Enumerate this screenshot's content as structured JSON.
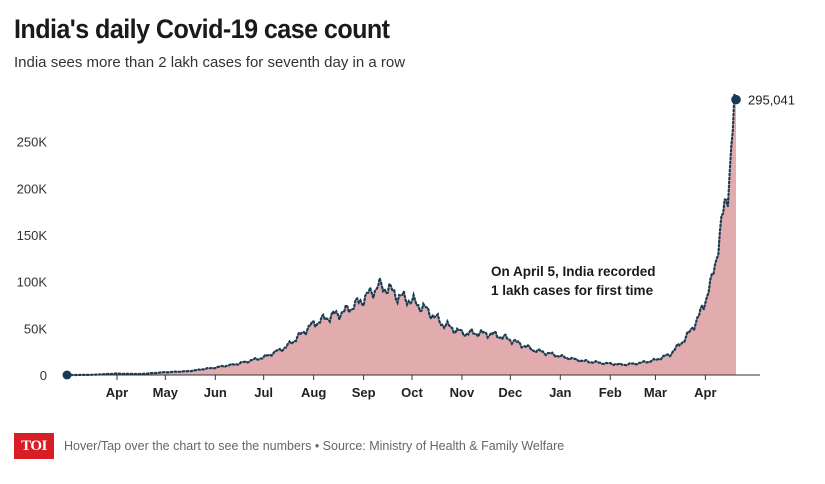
{
  "header": {
    "title": "India's daily Covid-19 case count",
    "subtitle": "India sees more than 2 lakh cases for seventh day in a row"
  },
  "footer": {
    "logo_text": "TOI",
    "note": "Hover/Tap over the chart to see the numbers • Source: Ministry of Health & Family Welfare"
  },
  "colors": {
    "area_fill": "#e2acaf",
    "line": "#1c3d52",
    "marker": "#163a57",
    "axis": "#333333",
    "logo": "#d81e24"
  },
  "chart_data": {
    "type": "area",
    "title": "India's daily Covid-19 case count",
    "subtitle": "India sees more than 2 lakh cases for seventh day in a row",
    "x_tick_labels": [
      "Apr",
      "May",
      "Jun",
      "Jul",
      "Aug",
      "Sep",
      "Oct",
      "Nov",
      "Dec",
      "Jan",
      "Feb",
      "Mar",
      "Apr"
    ],
    "y_tick_labels": [
      "0",
      "50K",
      "100K",
      "150K",
      "200K",
      "250K"
    ],
    "ylim": [
      0,
      300000
    ],
    "grid": false,
    "series": [
      {
        "x": [
          "2020-03-01",
          "2020-03-15",
          "2020-04-01",
          "2020-04-15",
          "2020-05-01",
          "2020-05-15",
          "2020-06-01",
          "2020-06-15",
          "2020-07-01",
          "2020-07-15",
          "2020-07-25",
          "2020-08-01",
          "2020-08-10",
          "2020-08-20",
          "2020-08-31",
          "2020-09-10",
          "2020-09-16",
          "2020-09-22",
          "2020-09-30",
          "2020-10-10",
          "2020-10-20",
          "2020-11-01",
          "2020-11-10",
          "2020-11-20",
          "2020-12-01",
          "2020-12-15",
          "2021-01-01",
          "2021-01-15",
          "2021-02-01",
          "2021-02-10",
          "2021-02-20",
          "2021-03-01",
          "2021-03-10",
          "2021-03-20",
          "2021-03-28",
          "2021-04-05",
          "2021-04-10",
          "2021-04-15",
          "2021-04-18",
          "2021-04-20"
        ],
        "y": [
          0,
          100,
          1500,
          1000,
          3000,
          4000,
          8000,
          12000,
          19000,
          30000,
          45000,
          55000,
          62000,
          68000,
          80000,
          95000,
          93000,
          85000,
          80000,
          70000,
          55000,
          45000,
          45000,
          44000,
          38000,
          27000,
          20000,
          15000,
          12000,
          11000,
          13000,
          16000,
          22000,
          40000,
          62000,
          100000,
          150000,
          200000,
          260000,
          295041
        ]
      }
    ],
    "annotations": [
      {
        "text_line1": "On April 5, India recorded",
        "text_line2": "1 lakh cases for first time",
        "x": "2020-12-01",
        "y": 103000
      },
      {
        "label": "295,041",
        "x": "2021-04-20",
        "y": 295041
      }
    ]
  }
}
